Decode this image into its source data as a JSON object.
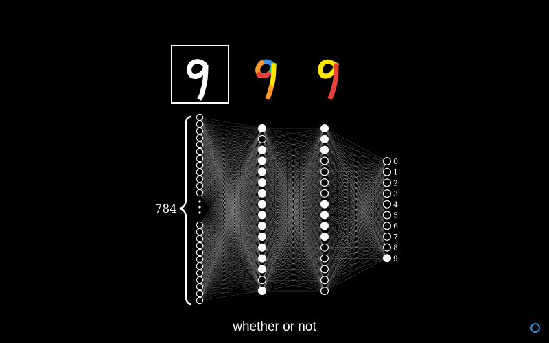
{
  "caption": "whether or not",
  "input_label": "784",
  "output_labels": [
    "0",
    "1",
    "2",
    "3",
    "4",
    "5",
    "6",
    "7",
    "8",
    "9"
  ],
  "colors": {
    "background": "#000000",
    "node_stroke": "#ffffff",
    "edge": "#bfbfbf",
    "stroke_yellow": "#ffe600",
    "stroke_red": "#e8413c",
    "stroke_blue": "#3a8fe8",
    "stroke_green": "#34c26b",
    "stroke_orange": "#ff9a2e",
    "logo_ring": "#2f8fd8"
  },
  "network": {
    "input_top_nodes": 12,
    "input_bottom_nodes": 12,
    "hidden1_nodes": 16,
    "hidden2_nodes": 16,
    "output_nodes": 10,
    "hidden1_active": [
      0,
      2,
      3,
      4,
      5,
      6,
      7,
      8,
      9,
      10,
      11,
      12,
      13,
      15
    ],
    "hidden2_active": [
      0,
      1,
      2,
      7,
      8,
      9,
      10
    ],
    "output_active": [
      9
    ]
  },
  "digit_images": [
    {
      "name": "input-digit-nine",
      "framed": true,
      "style": "white"
    },
    {
      "name": "multicolor-digit-nine",
      "framed": false,
      "style": "multicolor"
    },
    {
      "name": "yellow-red-digit-nine",
      "framed": false,
      "style": "yellow-red"
    }
  ]
}
